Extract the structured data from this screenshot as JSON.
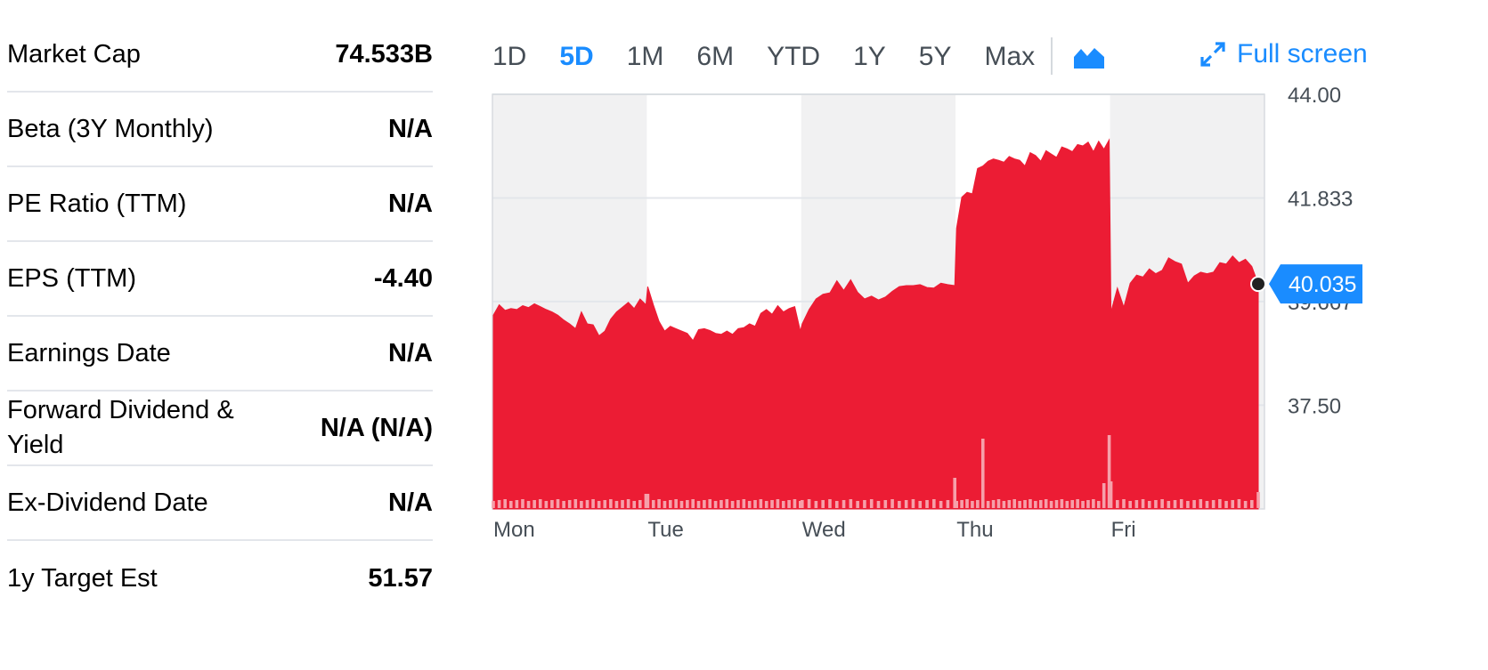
{
  "stats": [
    {
      "label": "Market Cap",
      "value": "74.533B"
    },
    {
      "label": "Beta (3Y Monthly)",
      "value": "N/A"
    },
    {
      "label": "PE Ratio (TTM)",
      "value": "N/A"
    },
    {
      "label": "EPS (TTM)",
      "value": "-4.40"
    },
    {
      "label": "Earnings Date",
      "value": "N/A"
    },
    {
      "label": "Forward Dividend & Yield",
      "value": "N/A (N/A)"
    },
    {
      "label": "Ex-Dividend Date",
      "value": "N/A"
    },
    {
      "label": "1y Target Est",
      "value": "51.57"
    }
  ],
  "range_tabs": [
    {
      "label": "1D",
      "active": false
    },
    {
      "label": "5D",
      "active": true
    },
    {
      "label": "1M",
      "active": false
    },
    {
      "label": "6M",
      "active": false
    },
    {
      "label": "YTD",
      "active": false
    },
    {
      "label": "1Y",
      "active": false
    },
    {
      "label": "5Y",
      "active": false
    },
    {
      "label": "Max",
      "active": false
    }
  ],
  "chart_type_icon": "mountain-chart-icon",
  "fullscreen": {
    "label": "Full screen",
    "icon": "expand-arrows-icon"
  },
  "colors": {
    "accent": "#1a8cff",
    "area": "#ec1c34",
    "volume": "#f6a0aa",
    "day_band_alt": "#f1f1f2",
    "gridline": "#e3e6eb",
    "current_price_bg": "#1a8cff"
  },
  "chart_data": {
    "type": "area",
    "xlabel": "",
    "ylabel": "",
    "categories": [
      "Mon",
      "Tue",
      "Wed",
      "Thu",
      "Fri"
    ],
    "y_ticks": [
      "44.00",
      "41.833",
      "39.667",
      "37.50"
    ],
    "ylim": [
      35.33,
      44.0
    ],
    "current_price": "40.035",
    "grid": true,
    "series": [
      {
        "values": [
          [
            39.38,
            39.6,
            39.48,
            39.52,
            39.5,
            39.58,
            39.54,
            39.62,
            39.56,
            39.5,
            39.45,
            39.38,
            39.28,
            39.2,
            39.1,
            39.45,
            39.2,
            39.18,
            38.95,
            39.05,
            39.3,
            39.45,
            39.55,
            39.65,
            39.52,
            39.72,
            39.6
          ],
          [
            39.98,
            39.6,
            39.25,
            39.05,
            39.15,
            39.1,
            39.05,
            39.0,
            38.85,
            39.08,
            39.1,
            39.06,
            39.0,
            38.98,
            39.05,
            38.98,
            39.1,
            39.12,
            39.2,
            39.15,
            39.42,
            39.5,
            39.4,
            39.58,
            39.45,
            39.52,
            39.56,
            39.05
          ],
          [
            39.2,
            39.5,
            39.72,
            39.82,
            39.85,
            40.1,
            39.9,
            40.12,
            39.86,
            39.72,
            39.78,
            39.7,
            39.76,
            39.88,
            39.98,
            40.0,
            40.0,
            40.02,
            39.96,
            39.95,
            40.05,
            40.02,
            40.0
          ],
          [
            41.2,
            41.85,
            41.95,
            41.92,
            42.45,
            42.5,
            42.6,
            42.65,
            42.62,
            42.58,
            42.7,
            42.65,
            42.62,
            42.5,
            42.78,
            42.72,
            42.6,
            42.82,
            42.75,
            42.68,
            42.9,
            42.86,
            42.8,
            42.95,
            42.92,
            43.0,
            42.8,
            43.02,
            42.85,
            43.05
          ],
          [
            39.45,
            39.95,
            39.55,
            40.05,
            40.22,
            40.18,
            40.35,
            40.25,
            40.32,
            40.58,
            40.5,
            40.45,
            40.05,
            40.2,
            40.28,
            40.25,
            40.28,
            40.48,
            40.45,
            40.62,
            40.48,
            40.55,
            40.4,
            40.035
          ]
        ]
      }
    ]
  }
}
